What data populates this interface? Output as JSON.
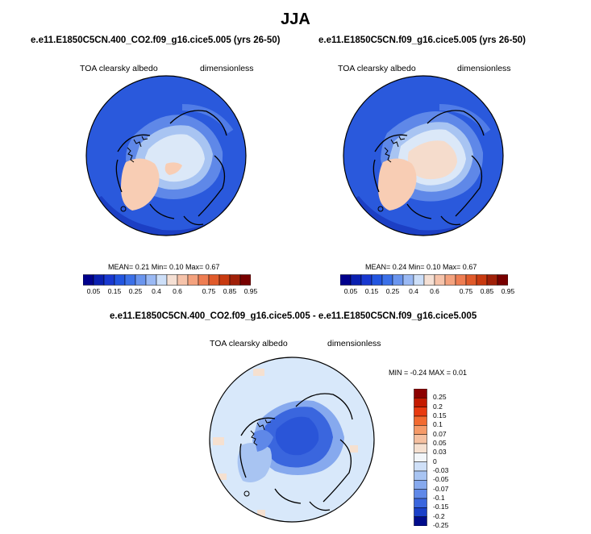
{
  "page": {
    "season": "JJA",
    "diff_title": "e.e11.E1850C5CN.400_CO2.f09_g16.cice5.005 - e.e11.E1850C5CN.f09_g16.cice5.005"
  },
  "panels": [
    {
      "case_title": "e.e11.E1850C5CN.400_CO2.f09_g16.cice5.005 (yrs 26-50)",
      "variable": "TOA clearsky albedo",
      "units": "dimensionless",
      "stats": "MEAN=  0.21  Min=  0.10  Max=  0.67"
    },
    {
      "case_title": "e.e11.E1850C5CN.f09_g16.cice5.005 (yrs 26-50)",
      "variable": "TOA clearsky albedo",
      "units": "dimensionless",
      "stats": "MEAN=  0.24  Min=  0.10  Max=  0.67"
    },
    {
      "variable": "TOA clearsky albedo",
      "units": "dimensionless",
      "stats": "MIN =  -0.24 MAX =  0.01"
    }
  ],
  "chart_data": [
    {
      "type": "heatmap",
      "projection": "north-polar-stereographic",
      "title": "e.e11.E1850C5CN.400_CO2.f09_g16.cice5.005 (yrs 26-50)",
      "variable": "TOA clearsky albedo",
      "units": "dimensionless",
      "mean": 0.21,
      "min": 0.1,
      "max": 0.67,
      "colorbar_levels": [
        "0.05",
        "0.1",
        "0.15",
        "0.2",
        "0.25",
        "0.3",
        "0.4",
        "0.5",
        "0.6",
        "0.65",
        "0.7",
        "0.75",
        "0.8",
        "0.85",
        "0.9",
        "0.95"
      ],
      "colorbar_tick_labels": [
        "0.05",
        "0.15",
        "0.25",
        "0.4",
        "0.6",
        "0.75",
        "0.85",
        "0.95"
      ],
      "colorbar_placement": "bottom"
    },
    {
      "type": "heatmap",
      "projection": "north-polar-stereographic",
      "title": "e.e11.E1850C5CN.f09_g16.cice5.005 (yrs 26-50)",
      "variable": "TOA clearsky albedo",
      "units": "dimensionless",
      "mean": 0.24,
      "min": 0.1,
      "max": 0.67,
      "colorbar_levels": [
        "0.05",
        "0.1",
        "0.15",
        "0.2",
        "0.25",
        "0.3",
        "0.4",
        "0.5",
        "0.6",
        "0.65",
        "0.7",
        "0.75",
        "0.8",
        "0.85",
        "0.9",
        "0.95"
      ],
      "colorbar_tick_labels": [
        "0.05",
        "0.15",
        "0.25",
        "0.4",
        "0.6",
        "0.75",
        "0.85",
        "0.95"
      ],
      "colorbar_placement": "bottom"
    },
    {
      "type": "heatmap",
      "projection": "north-polar-stereographic",
      "title": "e.e11.E1850C5CN.400_CO2.f09_g16.cice5.005 - e.e11.E1850C5CN.f09_g16.cice5.005",
      "variable": "TOA clearsky albedo",
      "units": "dimensionless",
      "min": -0.24,
      "max": 0.01,
      "colorbar_levels": [
        "0.25",
        "0.2",
        "0.15",
        "0.1",
        "0.07",
        "0.05",
        "0.03",
        "0",
        "-0.03",
        "-0.05",
        "-0.07",
        "-0.1",
        "-0.15",
        "-0.2",
        "-0.25"
      ],
      "colorbar_placement": "right"
    }
  ],
  "colors": {
    "ocean": "#2a59dc",
    "ice_light": "#dbe8f8",
    "land_peach": "#f8cdb4",
    "diff_background": "#d8e8fa",
    "colorbar_seq": [
      "#00008c",
      "#0a1fb0",
      "#1838d0",
      "#2255e0",
      "#3b70e8",
      "#6a95ee",
      "#9ab9f4",
      "#cddff8",
      "#f5e0d4",
      "#f6c3aa",
      "#f4a27e",
      "#ee7d52",
      "#e05a2a",
      "#c83a10",
      "#a02008",
      "#780000"
    ],
    "colorbar_div": [
      "#8c0000",
      "#c41a00",
      "#e83a10",
      "#f26a30",
      "#f59a68",
      "#f5c0a0",
      "#f5e0d0",
      "#f2f6fa",
      "#cfe0f8",
      "#a8c4f2",
      "#86a9ee",
      "#5f88e8",
      "#3a66de",
      "#1a40c8",
      "#000c8c"
    ]
  }
}
